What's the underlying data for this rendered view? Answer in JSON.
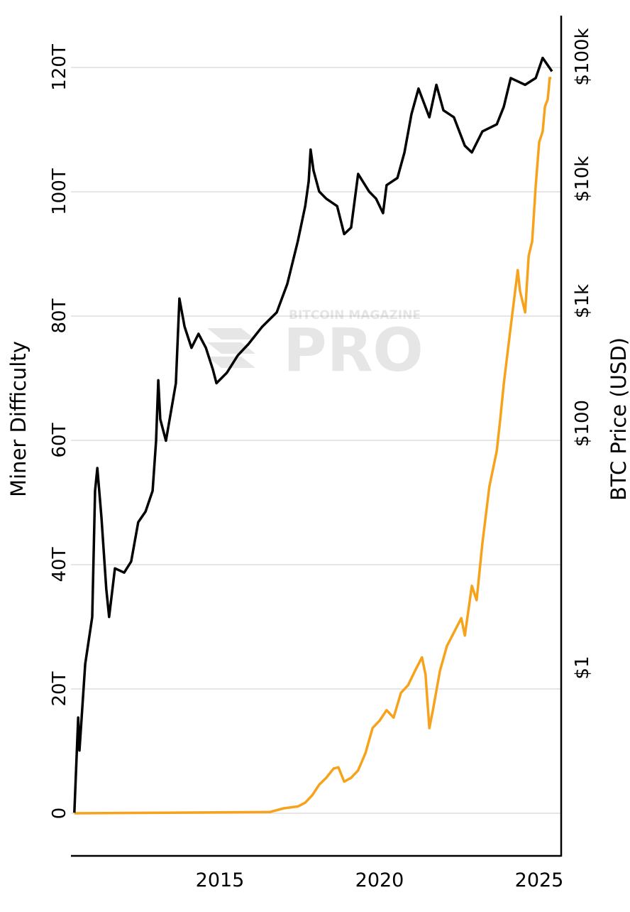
{
  "chart_data": {
    "type": "line",
    "title": "",
    "xlabel": "",
    "ylabel_left": "Miner Difficulty",
    "ylabel_right": "BTC Price (USD)",
    "xlim": [
      2010.33,
      2025.67
    ],
    "x_ticks": [
      {
        "value": 2015,
        "label": "2015"
      },
      {
        "value": 2020,
        "label": "2020"
      },
      {
        "value": 2025,
        "label": "2025"
      }
    ],
    "left_axis": {
      "scale": "linear",
      "unit": "T",
      "ylim": [
        -3.5,
        128
      ],
      "ticks": [
        {
          "value": 0,
          "label": "0"
        },
        {
          "value": 20,
          "label": "20T"
        },
        {
          "value": 40,
          "label": "40T"
        },
        {
          "value": 60,
          "label": "60T"
        },
        {
          "value": 80,
          "label": "80T"
        },
        {
          "value": 100,
          "label": "100T"
        },
        {
          "value": 120,
          "label": "120T"
        }
      ]
    },
    "right_axis": {
      "scale": "log",
      "ylim": [
        0.0162,
        219000
      ],
      "ticks": [
        {
          "value": 1,
          "label": "$1"
        },
        {
          "value": 100,
          "label": "$100"
        },
        {
          "value": 1000,
          "label": "$1k"
        },
        {
          "value": 10000,
          "label": "$10k"
        },
        {
          "value": 100000,
          "label": "$100k"
        }
      ]
    },
    "grid": true,
    "series": [
      {
        "axis": "right",
        "color": "#000000",
        "x": [
          2010.44,
          2010.56,
          2010.6,
          2010.78,
          2011.0,
          2011.09,
          2011.16,
          2011.29,
          2011.44,
          2011.53,
          2011.71,
          2012.0,
          2012.22,
          2012.44,
          2012.67,
          2012.89,
          2013.0,
          2013.07,
          2013.13,
          2013.31,
          2013.62,
          2013.73,
          2013.89,
          2014.11,
          2014.33,
          2014.56,
          2014.78,
          2014.89,
          2015.22,
          2015.56,
          2015.89,
          2016.33,
          2016.78,
          2017.11,
          2017.44,
          2017.67,
          2017.78,
          2017.84,
          2017.93,
          2018.11,
          2018.33,
          2018.67,
          2018.89,
          2019.11,
          2019.33,
          2019.67,
          2019.89,
          2020.11,
          2020.22,
          2020.56,
          2020.78,
          2021.0,
          2021.22,
          2021.56,
          2021.78,
          2022.0,
          2022.33,
          2022.67,
          2022.89,
          2023.22,
          2023.67,
          2023.89,
          2024.11,
          2024.56,
          2024.89,
          2025.11,
          2025.33,
          2025.4
        ],
        "y": [
          0.065,
          0.39,
          0.21,
          1.07,
          2.6,
          28,
          43,
          17,
          4.4,
          2.6,
          6.5,
          6,
          7.4,
          15.5,
          19,
          28,
          72,
          225,
          108,
          72,
          213,
          1050,
          620,
          415,
          540,
          415,
          275,
          213,
          260,
          360,
          445,
          620,
          810,
          1380,
          3100,
          6000,
          9550,
          17400,
          11750,
          7900,
          6900,
          6000,
          3540,
          4000,
          11000,
          7900,
          6900,
          5250,
          8900,
          10200,
          16500,
          34000,
          55000,
          32000,
          59000,
          36500,
          32000,
          18700,
          16500,
          24500,
          28000,
          39000,
          67000,
          59000,
          67000,
          98000,
          81000,
          76000
        ]
      },
      {
        "axis": "left",
        "color": "#f7a21b",
        "x": [
          2010.44,
          2016.56,
          2017.0,
          2017.44,
          2017.67,
          2017.89,
          2018.11,
          2018.33,
          2018.56,
          2018.71,
          2018.89,
          2019.11,
          2019.33,
          2019.56,
          2019.78,
          2020.0,
          2020.22,
          2020.44,
          2020.67,
          2020.89,
          2021.11,
          2021.33,
          2021.44,
          2021.56,
          2021.67,
          2021.89,
          2022.11,
          2022.33,
          2022.56,
          2022.67,
          2022.89,
          2023.04,
          2023.22,
          2023.44,
          2023.67,
          2023.78,
          2023.89,
          2024.0,
          2024.11,
          2024.22,
          2024.33,
          2024.4,
          2024.56,
          2024.67,
          2024.78,
          2024.89,
          2025.0,
          2025.11,
          2025.18,
          2025.27,
          2025.33,
          2025.38
        ],
        "y": [
          0,
          0.2,
          0.8,
          1.1,
          1.7,
          2.9,
          4.6,
          5.7,
          7.2,
          7.4,
          5.1,
          5.7,
          6.9,
          9.7,
          13.7,
          14.9,
          16.6,
          15.4,
          19.4,
          20.6,
          22.9,
          25.1,
          22.3,
          13.7,
          16.6,
          22.9,
          26.9,
          29.1,
          31.4,
          28.6,
          36.6,
          34.3,
          43.4,
          52.6,
          58.3,
          63.4,
          69.1,
          73.7,
          78.3,
          82.9,
          87.4,
          84,
          80.6,
          89.7,
          92,
          101,
          108,
          109.7,
          113.7,
          114.9,
          118.3,
          118.3
        ]
      }
    ]
  },
  "watermark": {
    "top": "BITCOIN MAGAZINE",
    "main": "PRO"
  }
}
